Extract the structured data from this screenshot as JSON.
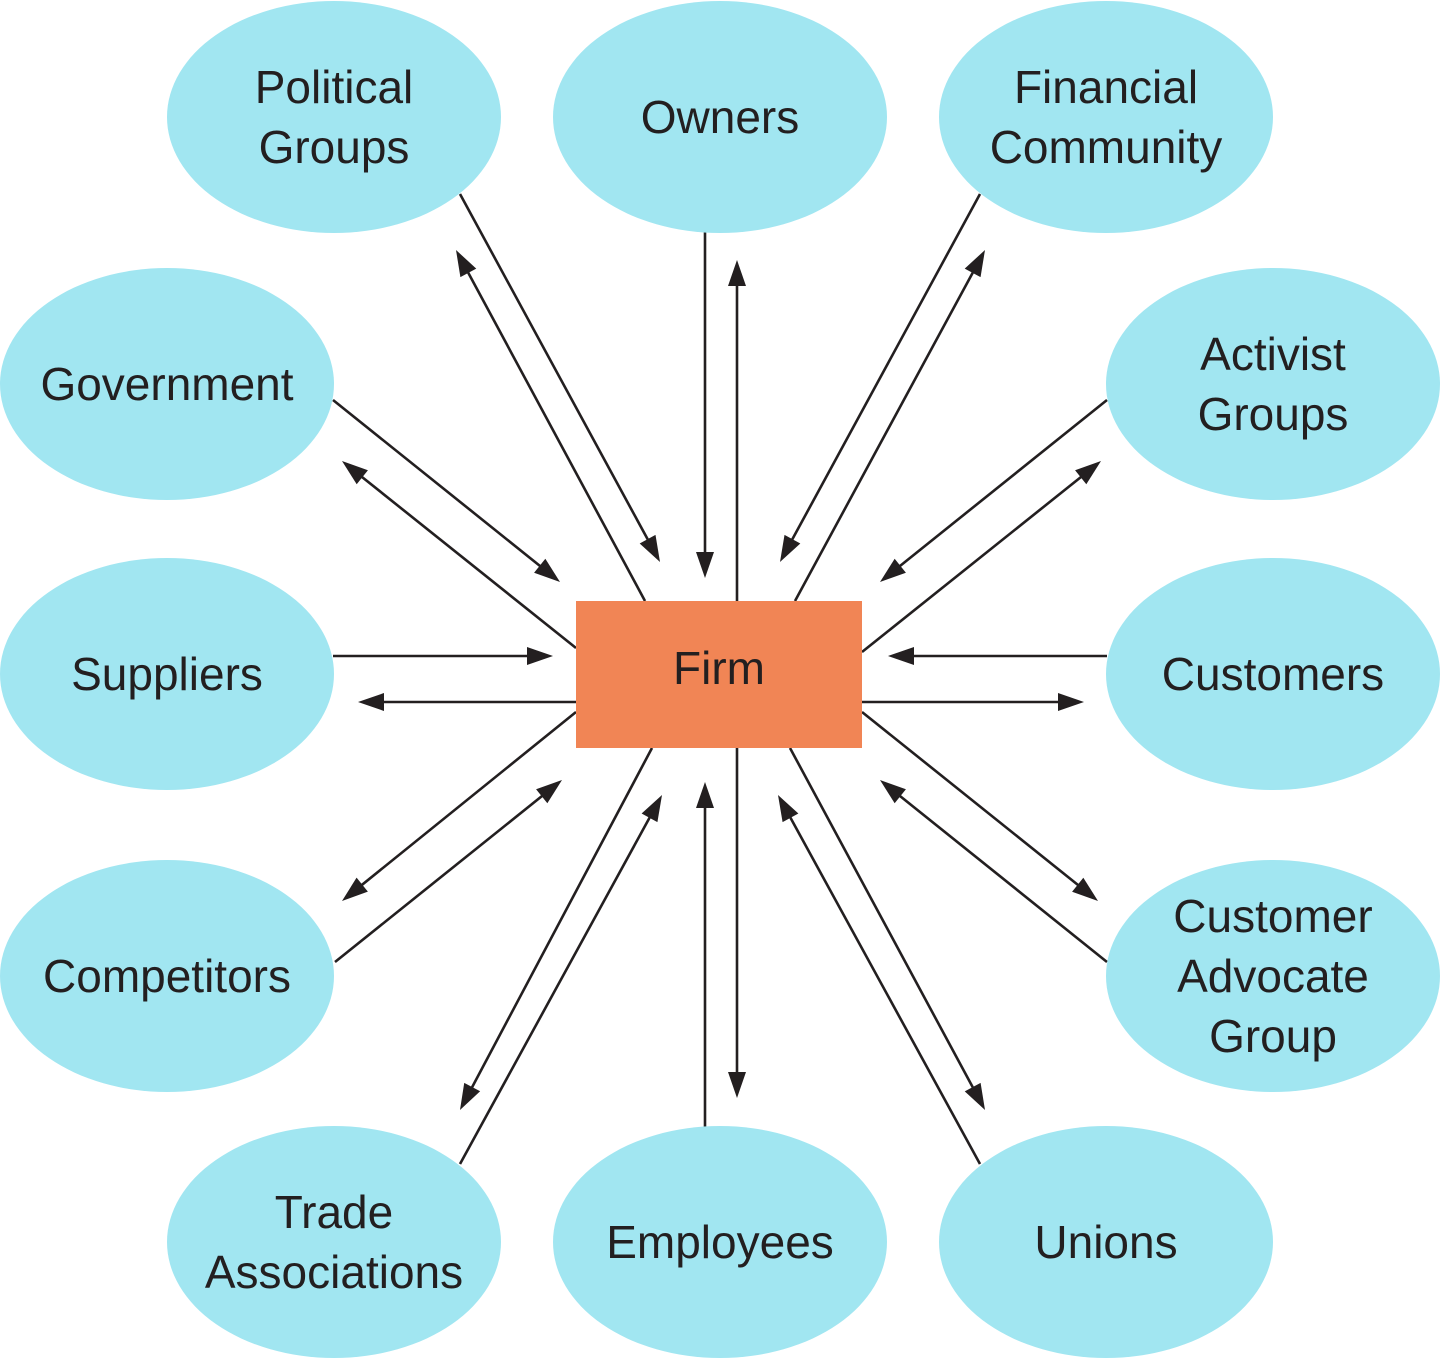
{
  "center": {
    "label": "Firm",
    "color": "#f18555"
  },
  "node_color": "#a1e6f1",
  "text_color": "#231f20",
  "stakeholders": [
    {
      "id": "political-groups",
      "label": "Political\nGroups"
    },
    {
      "id": "owners",
      "label": "Owners"
    },
    {
      "id": "financial-community",
      "label": "Financial\nCommunity"
    },
    {
      "id": "government",
      "label": "Government"
    },
    {
      "id": "activist-groups",
      "label": "Activist\nGroups"
    },
    {
      "id": "suppliers",
      "label": "Suppliers"
    },
    {
      "id": "customers",
      "label": "Customers"
    },
    {
      "id": "competitors",
      "label": "Competitors"
    },
    {
      "id": "customer-advocate-group",
      "label": "Customer\nAdvocate\nGroup"
    },
    {
      "id": "trade-associations",
      "label": "Trade\nAssociations"
    },
    {
      "id": "employees",
      "label": "Employees"
    },
    {
      "id": "unions",
      "label": "Unions"
    }
  ],
  "relationship": "two-way"
}
